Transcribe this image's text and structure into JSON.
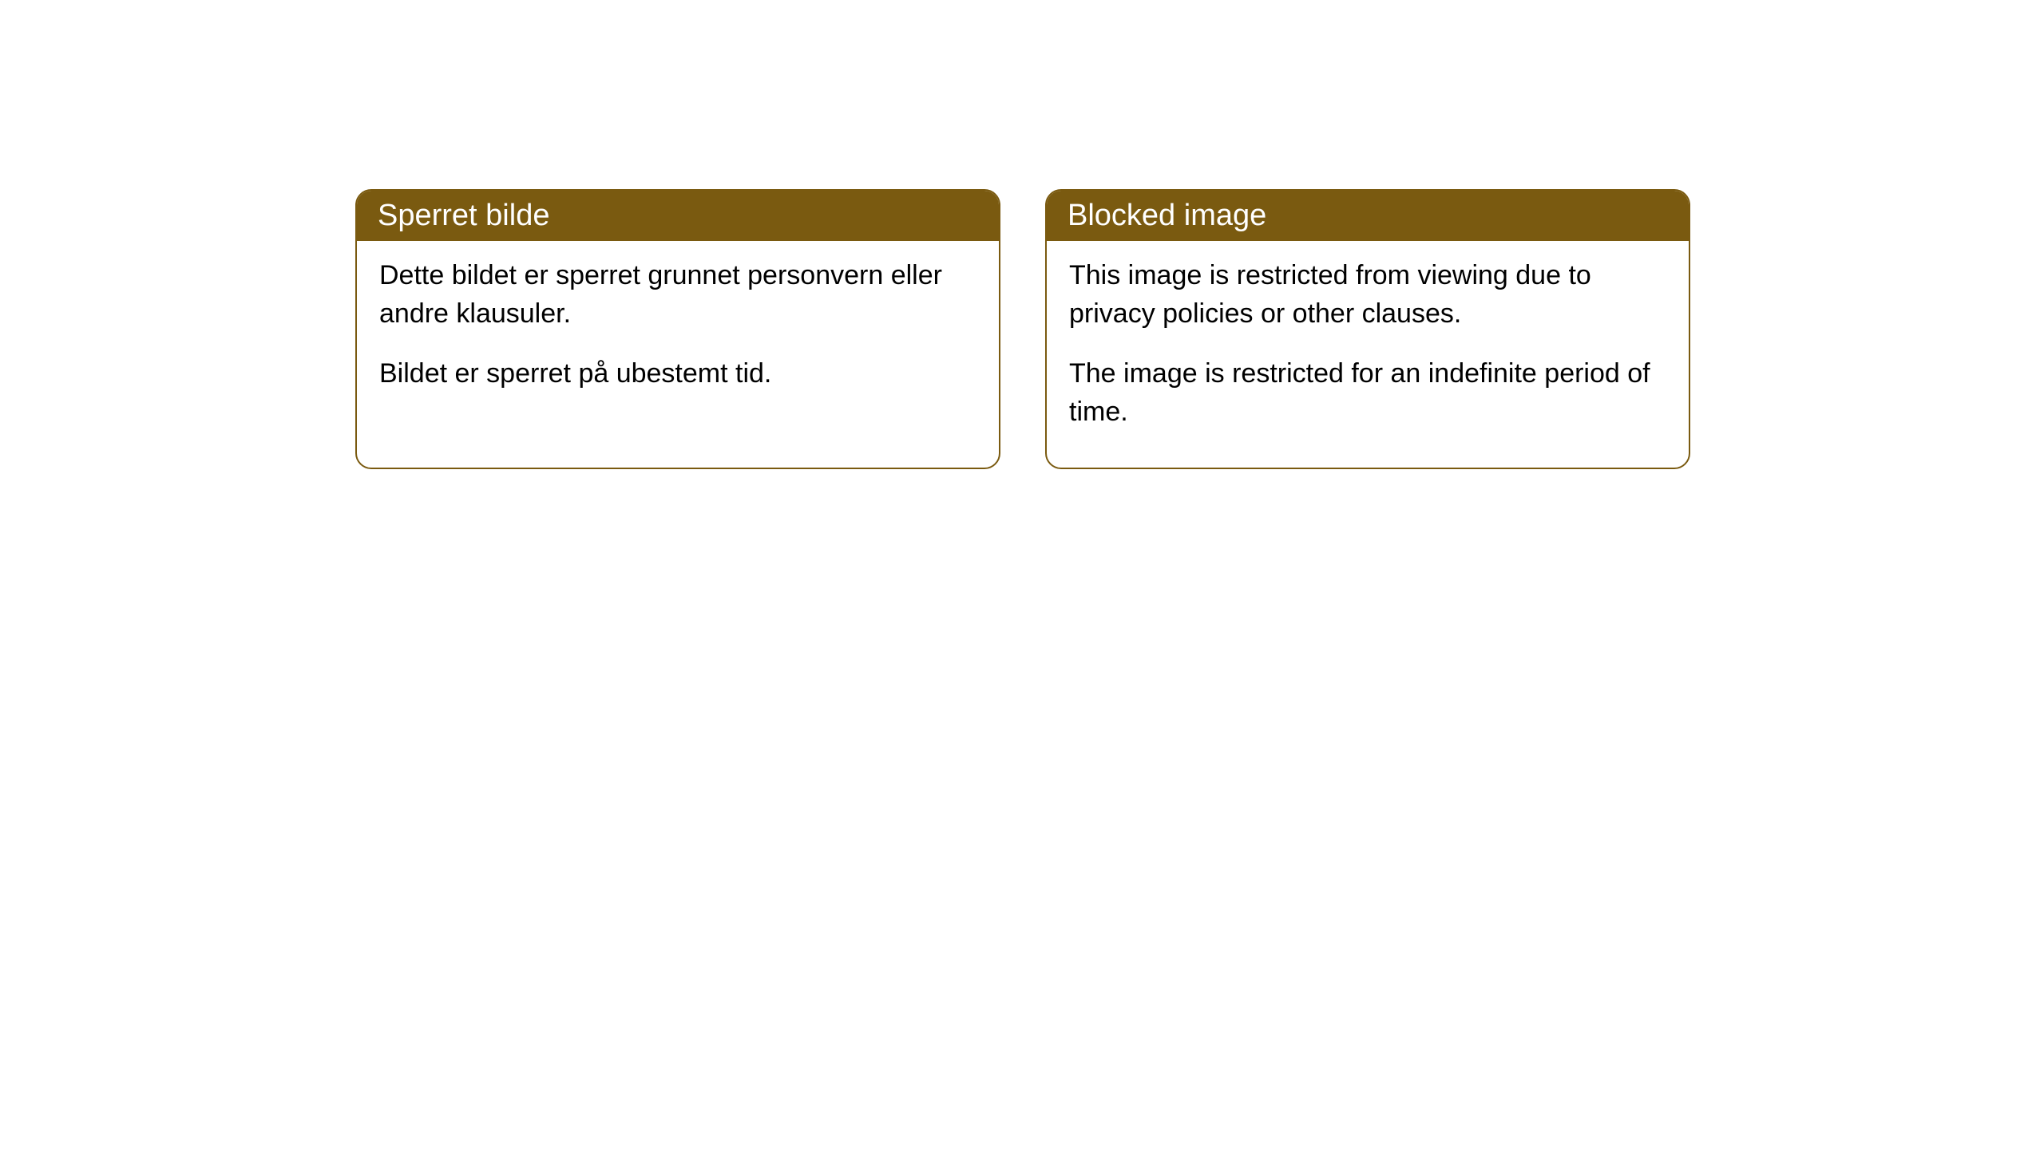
{
  "cards": [
    {
      "title": "Sperret bilde",
      "paragraph1": "Dette bildet er sperret grunnet personvern eller andre klausuler.",
      "paragraph2": "Bildet er sperret på ubestemt tid."
    },
    {
      "title": "Blocked image",
      "paragraph1": "This image is restricted from viewing due to privacy policies or other clauses.",
      "paragraph2": "The image is restricted for an indefinite period of time."
    }
  ],
  "styling": {
    "header_background": "#7a5a10",
    "header_text_color": "#ffffff",
    "border_color": "#7a5a10",
    "card_background": "#ffffff",
    "body_text_color": "#000000",
    "page_background": "#ffffff",
    "border_radius": 20,
    "header_fontsize": 38,
    "body_fontsize": 34
  }
}
